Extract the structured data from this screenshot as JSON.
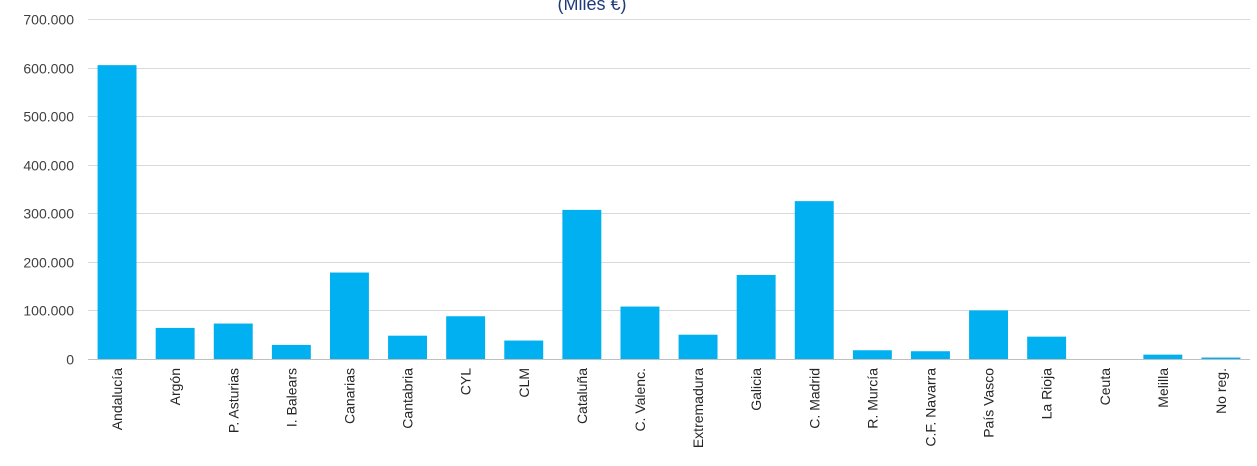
{
  "chart_data": {
    "type": "bar",
    "subtitle": "(Miles €)",
    "xlabel": "",
    "ylabel": "",
    "ylim": [
      0,
      700000
    ],
    "yticks": [
      0,
      100000,
      200000,
      300000,
      400000,
      500000,
      600000,
      700000
    ],
    "ytick_labels": [
      "0",
      "100.000",
      "200.000",
      "300.000",
      "400.000",
      "500.000",
      "600.000",
      "700.000"
    ],
    "grid": true,
    "legend": "none",
    "bar_color": "#00b0f0",
    "categories": [
      "Andalucía",
      "Argón",
      "P. Asturias",
      "I. Balears",
      "Canarias",
      "Cantabria",
      "CYL",
      "CLM",
      "Cataluña",
      "C. Valenc.",
      "Extremadura",
      "Galicia",
      "C. Madrid",
      "R. Murcía",
      "C.F. Navarra",
      "País Vasco",
      "La Rioja",
      "Ceuta",
      "Melilla",
      "No reg."
    ],
    "values": [
      605000,
      64000,
      73000,
      29000,
      178000,
      48000,
      88000,
      38000,
      307000,
      108000,
      50000,
      173000,
      325000,
      18000,
      16000,
      100000,
      46000,
      0,
      9000,
      3000
    ]
  }
}
